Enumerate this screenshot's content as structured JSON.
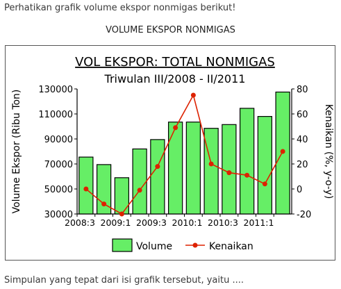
{
  "question": {
    "intro": "Perhatikan grafik volume ekspor nonmigas berikut!",
    "heading": "VOLUME EKSPOR NONMIGAS",
    "prompt": "Simpulan yang tepat dari isi grafik tersebut, yaitu ...."
  },
  "chart_data": {
    "type": "bar",
    "title": "VOL EKSPOR: TOTAL NONMIGAS",
    "subtitle": "Triwulan III/2008 - II/2011",
    "ylabel": "Volume Ekspor (Ribu Ton)",
    "y2label": "Kenaikan (%, y-o-y)",
    "categories": [
      "2008:3",
      "2008:4",
      "2009:1",
      "2009:2",
      "2009:3",
      "2009:4",
      "2010:1",
      "2010:2",
      "2010:3",
      "2010:4",
      "2011:1",
      "2011:2"
    ],
    "x_tick_labels": [
      "2008:3",
      "2009:1",
      "2009:3",
      "2010:1",
      "2010:3",
      "2011:1"
    ],
    "ylim": [
      30000,
      130000
    ],
    "y_ticks": [
      "130000",
      "110000",
      "90000",
      "70000",
      "50000",
      "30000"
    ],
    "y2lim": [
      -20,
      80
    ],
    "y2_ticks": [
      "80",
      "60",
      "40",
      "20",
      "0",
      "-20"
    ],
    "series": [
      {
        "name": "Volume",
        "kind": "bar",
        "color": "#66ee66",
        "values": [
          75500,
          69500,
          59000,
          82000,
          89500,
          103500,
          103500,
          98500,
          101500,
          114500,
          108000,
          127500
        ]
      },
      {
        "name": "Kenaikan",
        "kind": "line",
        "axis": "right",
        "color": "#dd2200",
        "values": [
          0,
          -12,
          -20,
          -1,
          18,
          49,
          75,
          20,
          13,
          11,
          4,
          30
        ]
      }
    ],
    "legend": {
      "position": "bottom",
      "volume_label": "Volume",
      "kenaikan_label": "Kenaikan"
    },
    "grid": false
  }
}
